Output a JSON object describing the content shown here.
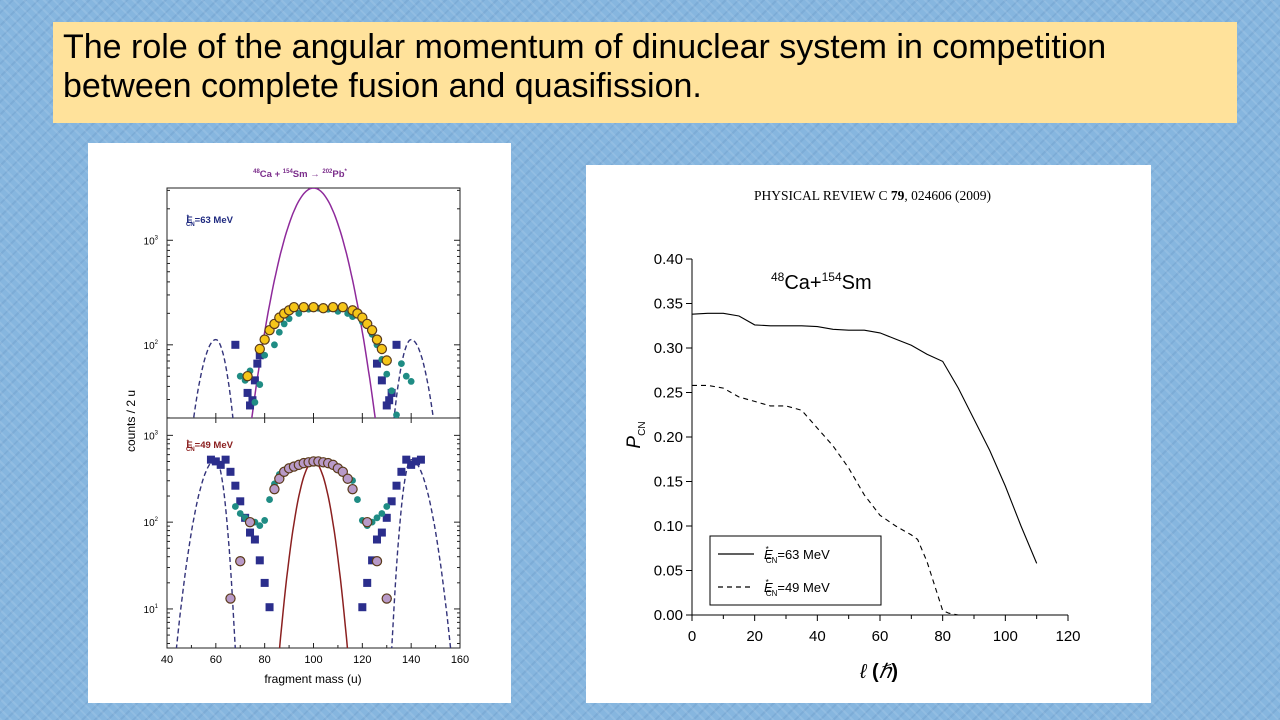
{
  "slide": {
    "title": "The role of the angular momentum of dinuclear system in competition between complete fusion and quasifission."
  },
  "chart_data": [
    {
      "type": "scatter",
      "title": "48Ca + 154Sm → 202Pb*",
      "reaction": {
        "a_mass": "48",
        "a_sym": "Ca",
        "plus": " + ",
        "b_mass": "154",
        "b_sym": "Sm",
        "arrow": " → ",
        "c_mass": "202",
        "c_sym": "Pb",
        "star": "*"
      },
      "xlabel": "fragment mass (u)",
      "ylabel": "counts / 2 u",
      "xlim": [
        40,
        160
      ],
      "x_ticks": [
        "40",
        "60",
        "80",
        "100",
        "120",
        "140",
        "160"
      ],
      "log_scale_y": true,
      "colors": {
        "title": "#7b2d8b",
        "top_fit": "#8e2a9b",
        "bottom_fit": "#8b2020",
        "dashed": "#33337a",
        "squares": "#2b2e8c",
        "dots": "#1f8c84",
        "ring_top": "#f5c518",
        "ring_bottom": "#b89ac8"
      },
      "panels": [
        {
          "energy": {
            "prefix": "E",
            "sup": "*",
            "sub": "CN",
            "suffix": "=63 MeV"
          },
          "ylim_decades": [
            1.3,
            3.5
          ],
          "y_ticks": [
            {
              "label": "10",
              "exp": "3",
              "log": 3
            },
            {
              "label": "10",
              "exp": "2",
              "log": 2
            }
          ],
          "ring_points": [
            [
              73,
              1.7
            ],
            [
              78,
              1.96
            ],
            [
              80,
              2.05
            ],
            [
              82,
              2.14
            ],
            [
              84,
              2.2
            ],
            [
              86,
              2.26
            ],
            [
              88,
              2.3
            ],
            [
              90,
              2.33
            ],
            [
              92,
              2.36
            ],
            [
              96,
              2.36
            ],
            [
              100,
              2.36
            ],
            [
              104,
              2.35
            ],
            [
              108,
              2.36
            ],
            [
              112,
              2.36
            ],
            [
              116,
              2.33
            ],
            [
              118,
              2.3
            ],
            [
              120,
              2.26
            ],
            [
              122,
              2.2
            ],
            [
              124,
              2.14
            ],
            [
              126,
              2.05
            ],
            [
              128,
              1.96
            ],
            [
              130,
              1.85
            ]
          ],
          "dot_points": [
            [
              70,
              1.1
            ],
            [
              72,
              1.06
            ],
            [
              74,
              1.15
            ],
            [
              76,
              1.45
            ],
            [
              78,
              1.62
            ],
            [
              80,
              1.9
            ],
            [
              84,
              2.0
            ],
            [
              86,
              2.12
            ],
            [
              88,
              2.2
            ],
            [
              90,
              2.25
            ],
            [
              94,
              2.3
            ],
            [
              98,
              2.34
            ],
            [
              102,
              2.35
            ],
            [
              106,
              2.34
            ],
            [
              110,
              2.32
            ],
            [
              114,
              2.3
            ],
            [
              116,
              2.27
            ],
            [
              120,
              2.22
            ],
            [
              124,
              2.1
            ],
            [
              126,
              2.0
            ],
            [
              128,
              1.86
            ],
            [
              130,
              1.72
            ],
            [
              132,
              1.56
            ],
            [
              134,
              1.33
            ],
            [
              136,
              1.22
            ],
            [
              138,
              1.1
            ],
            [
              140,
              1.05
            ]
          ],
          "square_points": [
            [
              68,
              0.7
            ],
            [
              73,
              0.24
            ],
            [
              74,
              0.12
            ],
            [
              75,
              0.17
            ],
            [
              76,
              0.36
            ],
            [
              77,
              0.52
            ],
            [
              78,
              0.6
            ],
            [
              126,
              0.52
            ],
            [
              128,
              0.36
            ],
            [
              130,
              0.12
            ],
            [
              131,
              0.17
            ],
            [
              132,
              0.24
            ],
            [
              134,
              0.7
            ]
          ],
          "fit_mu": 100,
          "fit_sigma": 19.8,
          "fit_peak": 3.5,
          "dashed": {
            "left_center": 60,
            "right_center": 140,
            "sigma": 11.5,
            "peak": 2.05,
            "inner_fall": 12
          }
        },
        {
          "energy": {
            "prefix": "E",
            "sup": "*",
            "sub": "CN",
            "suffix": "=49 MeV"
          },
          "ylim_decades": [
            0.55,
            3.2
          ],
          "y_ticks": [
            {
              "label": "10",
              "exp": "3",
              "log": 3
            },
            {
              "label": "10",
              "exp": "2",
              "log": 2
            },
            {
              "label": "10",
              "exp": "1",
              "log": 1
            }
          ],
          "ring_points": [
            [
              84,
              2.38
            ],
            [
              86,
              2.5
            ],
            [
              88,
              2.58
            ],
            [
              90,
              2.62
            ],
            [
              92,
              2.64
            ],
            [
              94,
              2.66
            ],
            [
              96,
              2.68
            ],
            [
              98,
              2.69
            ],
            [
              100,
              2.7
            ],
            [
              102,
              2.7
            ],
            [
              104,
              2.69
            ],
            [
              106,
              2.68
            ],
            [
              108,
              2.66
            ],
            [
              110,
              2.62
            ],
            [
              112,
              2.58
            ],
            [
              114,
              2.5
            ],
            [
              116,
              2.38
            ],
            [
              122,
              2.0
            ],
            [
              126,
              1.55
            ],
            [
              130,
              1.12
            ],
            [
              74,
              2.0
            ],
            [
              70,
              1.55
            ],
            [
              66,
              1.12
            ]
          ],
          "dot_points": [
            [
              68,
              2.18
            ],
            [
              70,
              2.1
            ],
            [
              72,
              2.05
            ],
            [
              76,
              2.0
            ],
            [
              78,
              1.96
            ],
            [
              80,
              2.02
            ],
            [
              82,
              2.26
            ],
            [
              84,
              2.44
            ],
            [
              86,
              2.55
            ],
            [
              88,
              2.6
            ],
            [
              92,
              2.65
            ],
            [
              96,
              2.68
            ],
            [
              100,
              2.71
            ],
            [
              104,
              2.69
            ],
            [
              108,
              2.66
            ],
            [
              112,
              2.6
            ],
            [
              116,
              2.48
            ],
            [
              118,
              2.26
            ],
            [
              120,
              2.02
            ],
            [
              122,
              1.96
            ],
            [
              124,
              2.0
            ],
            [
              126,
              2.05
            ],
            [
              128,
              2.1
            ],
            [
              130,
              2.18
            ]
          ],
          "square_points": [
            [
              58,
              2.72
            ],
            [
              60,
              2.7
            ],
            [
              62,
              2.66
            ],
            [
              64,
              2.72
            ],
            [
              66,
              2.58
            ],
            [
              68,
              2.42
            ],
            [
              70,
              2.24
            ],
            [
              72,
              2.05
            ],
            [
              74,
              1.88
            ],
            [
              76,
              1.8
            ],
            [
              78,
              1.56
            ],
            [
              80,
              1.3
            ],
            [
              82,
              1.02
            ],
            [
              120,
              1.02
            ],
            [
              122,
              1.3
            ],
            [
              124,
              1.56
            ],
            [
              126,
              1.8
            ],
            [
              128,
              1.88
            ],
            [
              130,
              2.05
            ],
            [
              132,
              2.24
            ],
            [
              134,
              2.42
            ],
            [
              136,
              2.58
            ],
            [
              138,
              2.72
            ],
            [
              140,
              2.66
            ],
            [
              142,
              2.7
            ],
            [
              144,
              2.72
            ]
          ],
          "fit_mu": 100,
          "fit_sigma": 11.0,
          "fit_peak": 2.7,
          "dashed": {
            "left_center": 60,
            "right_center": 140,
            "sigma": 12.0,
            "peak": 2.72,
            "inner_fall": 8
          }
        }
      ]
    },
    {
      "type": "line",
      "journal": "PHYSICAL REVIEW C",
      "journal_volume": "79",
      "journal_ref": ", 024606 (2009)",
      "annotation": {
        "a_mass": "48",
        "a_sym": "Ca+",
        "b_mass": "154",
        "b_sym": "Sm"
      },
      "xlabel_symbol": "ℓ",
      "xlabel_unit": "ℏ",
      "ylabel": "P",
      "ylabel_sub": "CN",
      "xlim": [
        0,
        120
      ],
      "ylim": [
        0,
        0.4
      ],
      "x_ticks": [
        "0",
        "20",
        "40",
        "60",
        "80",
        "100",
        "120"
      ],
      "y_ticks": [
        "0.00",
        "0.05",
        "0.10",
        "0.15",
        "0.20",
        "0.25",
        "0.30",
        "0.35",
        "0.40"
      ],
      "legend_position": "bottom-left",
      "series": [
        {
          "name": "E*CN=63 MeV",
          "label": {
            "prefix": "E",
            "sup": "*",
            "sub": "CN",
            "suffix": "=63 MeV"
          },
          "style": "solid",
          "x": [
            0,
            5,
            10,
            15,
            20,
            25,
            30,
            35,
            40,
            45,
            50,
            55,
            60,
            65,
            70,
            75,
            80,
            85,
            90,
            95,
            100,
            105,
            110
          ],
          "y": [
            0.338,
            0.339,
            0.339,
            0.336,
            0.326,
            0.325,
            0.325,
            0.325,
            0.324,
            0.321,
            0.32,
            0.32,
            0.317,
            0.31,
            0.303,
            0.293,
            0.285,
            0.255,
            0.22,
            0.185,
            0.145,
            0.1,
            0.058
          ]
        },
        {
          "name": "E*CN=49 MeV",
          "label": {
            "prefix": "E",
            "sup": "*",
            "sub": "CN",
            "suffix": "=49 MeV"
          },
          "style": "dashed",
          "x": [
            0,
            5,
            10,
            15,
            20,
            25,
            30,
            35,
            40,
            45,
            50,
            55,
            60,
            65,
            70,
            72,
            75,
            80,
            82,
            85
          ],
          "y": [
            0.258,
            0.258,
            0.255,
            0.245,
            0.24,
            0.235,
            0.235,
            0.23,
            0.21,
            0.19,
            0.165,
            0.135,
            0.112,
            0.1,
            0.09,
            0.085,
            0.06,
            0.005,
            0.002,
            0.0
          ]
        }
      ]
    }
  ]
}
